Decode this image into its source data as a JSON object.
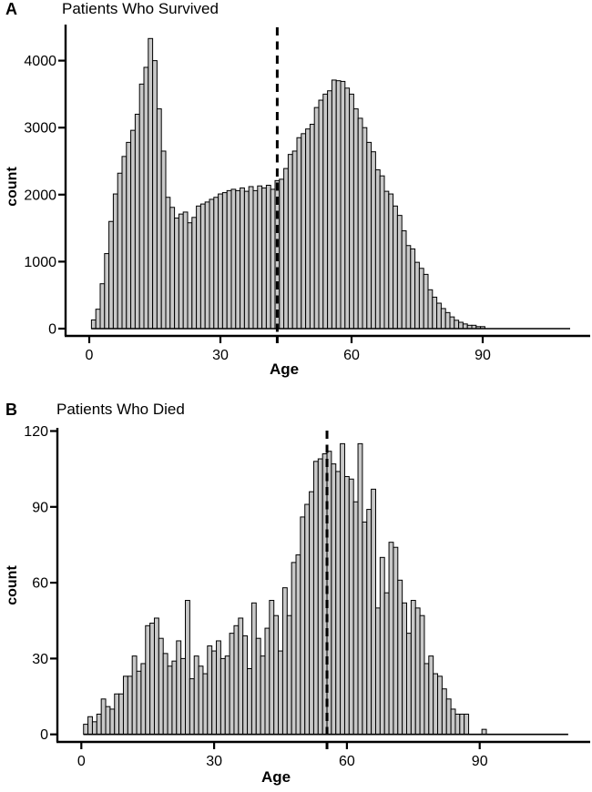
{
  "figure_colors": {
    "bar_fill": "#c8c8c8",
    "bar_stroke": "#000000",
    "axis": "#000000",
    "background": "#ffffff"
  },
  "chart_data": [
    {
      "type": "bar",
      "panel_label": "A",
      "title": "Patients Who Survived",
      "xlabel": "Age",
      "ylabel": "count",
      "xticks": [
        0,
        30,
        60,
        90
      ],
      "yticks": [
        0,
        1000,
        2000,
        3000,
        4000
      ],
      "xlim": [
        -5.5,
        115
      ],
      "ylim": [
        0,
        4525
      ],
      "binwidth": 1,
      "dashed_line_x": 43,
      "zero_tail_to": 110,
      "x": [
        1,
        2,
        3,
        4,
        5,
        6,
        7,
        8,
        9,
        10,
        11,
        12,
        13,
        14,
        15,
        16,
        17,
        18,
        19,
        20,
        21,
        22,
        23,
        24,
        25,
        26,
        27,
        28,
        29,
        30,
        31,
        32,
        33,
        34,
        35,
        36,
        37,
        38,
        39,
        40,
        41,
        42,
        43,
        44,
        45,
        46,
        47,
        48,
        49,
        50,
        51,
        52,
        53,
        54,
        55,
        56,
        57,
        58,
        59,
        60,
        61,
        62,
        63,
        64,
        65,
        66,
        67,
        68,
        69,
        70,
        71,
        72,
        73,
        74,
        75,
        76,
        77,
        78,
        79,
        80,
        81,
        82,
        83,
        84,
        85,
        86,
        87,
        88,
        89,
        90
      ],
      "values": [
        130,
        290,
        670,
        1120,
        1600,
        2010,
        2320,
        2570,
        2780,
        2960,
        3200,
        3650,
        3900,
        4330,
        4000,
        3280,
        2650,
        1960,
        1810,
        1650,
        1710,
        1740,
        1580,
        1660,
        1830,
        1860,
        1890,
        1930,
        1960,
        2010,
        2030,
        2060,
        2080,
        2060,
        2100,
        2050,
        2120,
        2060,
        2130,
        2100,
        2140,
        2080,
        2210,
        2230,
        2390,
        2600,
        2650,
        2850,
        2910,
        2980,
        3050,
        3300,
        3410,
        3500,
        3550,
        3710,
        3700,
        3690,
        3590,
        3500,
        3280,
        3140,
        3000,
        2780,
        2640,
        2370,
        2280,
        2050,
        2010,
        1830,
        1690,
        1460,
        1240,
        1190,
        990,
        900,
        810,
        580,
        470,
        380,
        300,
        240,
        175,
        125,
        95,
        70,
        50,
        50,
        30,
        30
      ]
    },
    {
      "type": "bar",
      "panel_label": "B",
      "title": "Patients Who Died",
      "xlabel": "Age",
      "ylabel": "count",
      "xticks": [
        0,
        30,
        60,
        90
      ],
      "yticks": [
        0,
        30,
        60,
        90,
        120
      ],
      "xlim": [
        -5.5,
        115
      ],
      "ylim": [
        0,
        121
      ],
      "binwidth": 1,
      "dashed_line_x": 55.5,
      "zero_tail_to": 110,
      "x": [
        1,
        2,
        3,
        4,
        5,
        6,
        7,
        8,
        9,
        10,
        11,
        12,
        13,
        14,
        15,
        16,
        17,
        18,
        19,
        20,
        21,
        22,
        23,
        24,
        25,
        26,
        27,
        28,
        29,
        30,
        31,
        32,
        33,
        34,
        35,
        36,
        37,
        38,
        39,
        40,
        41,
        42,
        43,
        44,
        45,
        46,
        47,
        48,
        49,
        50,
        51,
        52,
        53,
        54,
        55,
        56,
        57,
        58,
        59,
        60,
        61,
        62,
        63,
        64,
        65,
        66,
        67,
        68,
        69,
        70,
        71,
        72,
        73,
        74,
        75,
        76,
        77,
        78,
        79,
        80,
        81,
        82,
        83,
        84,
        85,
        86,
        87,
        88,
        89,
        90,
        91
      ],
      "values": [
        4,
        7,
        5,
        8,
        14,
        11,
        10,
        16,
        16,
        23,
        23,
        31,
        25,
        28,
        43,
        44,
        46,
        38,
        32,
        27,
        29,
        37,
        30,
        53,
        22,
        31,
        27,
        24,
        35,
        33,
        37,
        30,
        31,
        40,
        43,
        46,
        39,
        26,
        52,
        38,
        31,
        42,
        53,
        47,
        33,
        58,
        47,
        68,
        71,
        86,
        91,
        96,
        108,
        109,
        111,
        112,
        107,
        104,
        115,
        102,
        101,
        92,
        115,
        84,
        89,
        97,
        50,
        70,
        56,
        76,
        74,
        61,
        52,
        40,
        53,
        50,
        47,
        28,
        31,
        24,
        23,
        18,
        14,
        10,
        8,
        8,
        8,
        0,
        0,
        0,
        2
      ]
    }
  ]
}
